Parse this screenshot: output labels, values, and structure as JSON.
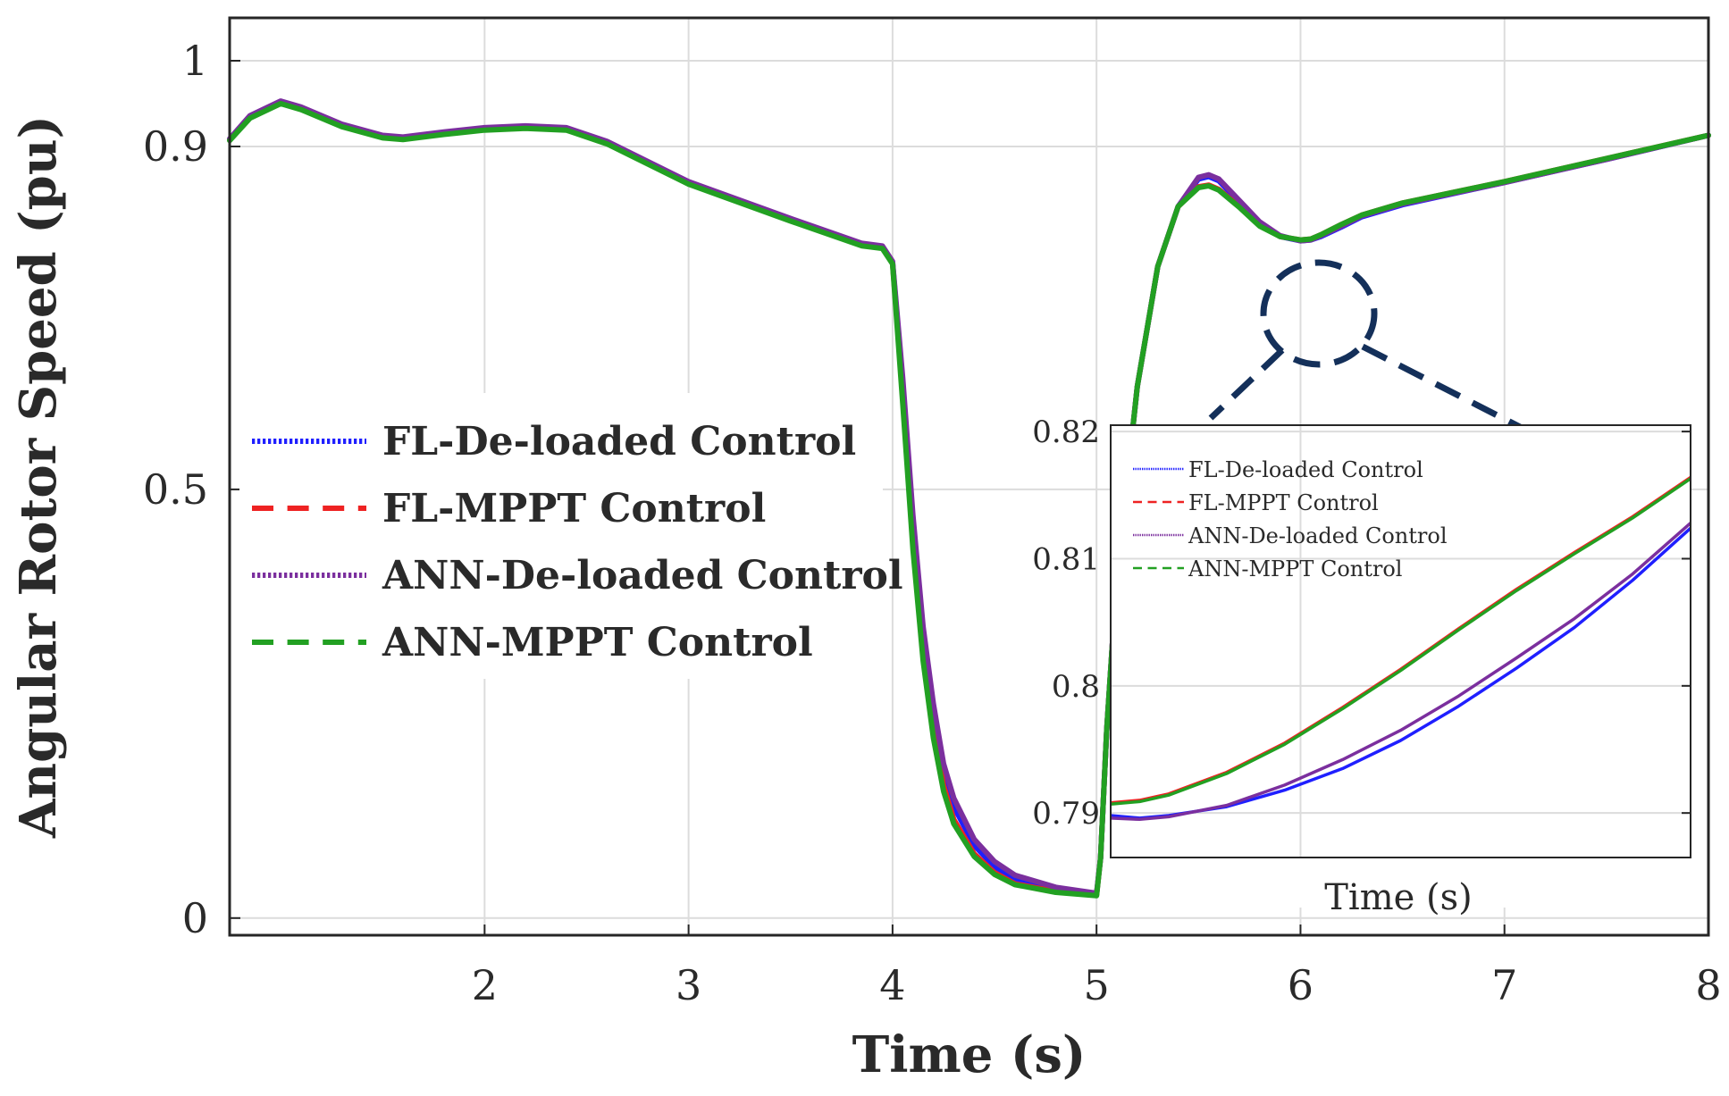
{
  "chart_data": [
    {
      "type": "line",
      "title": "",
      "xlabel": "Time (s)",
      "ylabel": "Angular Rotor Speed (pu)",
      "xlim": [
        0.75,
        8
      ],
      "ylim": [
        -0.02,
        1.05
      ],
      "grid": true,
      "legend_position": "center-left",
      "xticks": [
        2,
        3,
        4,
        5,
        6,
        7,
        8
      ],
      "xtick_labels": [
        "2",
        "3",
        "4",
        "5",
        "6",
        "7",
        "8"
      ],
      "yticks": [
        0,
        0.5,
        0.9,
        1
      ],
      "ytick_labels": [
        "0",
        "0.5",
        "0.9",
        "1"
      ],
      "series": [
        {
          "name": "FL-De-loaded Control",
          "color": "#1f1fff",
          "dash": "dotted",
          "x": [
            0.75,
            0.85,
            1.0,
            1.1,
            1.3,
            1.5,
            1.6,
            1.8,
            2.0,
            2.2,
            2.4,
            2.6,
            3.0,
            3.5,
            3.85,
            3.95,
            4.0,
            4.05,
            4.1,
            4.15,
            4.2,
            4.25,
            4.3,
            4.4,
            4.5,
            4.6,
            4.8,
            5.0,
            5.02,
            5.05,
            5.1,
            5.2,
            5.3,
            5.4,
            5.5,
            5.55,
            5.6,
            5.7,
            5.8,
            5.9,
            6.0,
            6.05,
            6.1,
            6.2,
            6.3,
            6.5,
            7.0,
            7.5,
            8.0
          ],
          "y": [
            0.908,
            0.935,
            0.952,
            0.945,
            0.925,
            0.912,
            0.91,
            0.916,
            0.921,
            0.923,
            0.921,
            0.905,
            0.858,
            0.815,
            0.786,
            0.783,
            0.765,
            0.62,
            0.46,
            0.33,
            0.24,
            0.17,
            0.13,
            0.085,
            0.06,
            0.045,
            0.033,
            0.028,
            0.07,
            0.22,
            0.4,
            0.62,
            0.76,
            0.83,
            0.862,
            0.865,
            0.86,
            0.835,
            0.81,
            0.795,
            0.79,
            0.791,
            0.795,
            0.806,
            0.818,
            0.832,
            0.858,
            0.885,
            0.913
          ]
        },
        {
          "name": "FL-MPPT Control",
          "color": "#ee2222",
          "dash": "dashed",
          "x": [
            0.75,
            0.85,
            1.0,
            1.1,
            1.3,
            1.5,
            1.6,
            1.8,
            2.0,
            2.2,
            2.4,
            2.6,
            3.0,
            3.5,
            3.85,
            3.95,
            4.0,
            4.05,
            4.1,
            4.15,
            4.2,
            4.25,
            4.3,
            4.4,
            4.5,
            4.6,
            4.8,
            5.0,
            5.02,
            5.05,
            5.1,
            5.2,
            5.3,
            5.4,
            5.5,
            5.55,
            5.6,
            5.7,
            5.8,
            5.9,
            6.0,
            6.05,
            6.1,
            6.2,
            6.3,
            6.5,
            7.0,
            7.5,
            8.0
          ],
          "y": [
            0.908,
            0.934,
            0.951,
            0.944,
            0.924,
            0.911,
            0.909,
            0.915,
            0.92,
            0.922,
            0.92,
            0.904,
            0.857,
            0.814,
            0.785,
            0.782,
            0.764,
            0.61,
            0.44,
            0.31,
            0.22,
            0.155,
            0.115,
            0.075,
            0.053,
            0.04,
            0.031,
            0.027,
            0.07,
            0.22,
            0.4,
            0.62,
            0.76,
            0.83,
            0.853,
            0.855,
            0.85,
            0.83,
            0.808,
            0.795,
            0.791,
            0.792,
            0.797,
            0.809,
            0.82,
            0.834,
            0.859,
            0.886,
            0.913
          ]
        },
        {
          "name": "ANN-De-loaded Control",
          "color": "#7b2f9e",
          "dash": "dotted",
          "x": [
            0.75,
            0.85,
            1.0,
            1.1,
            1.3,
            1.5,
            1.6,
            1.8,
            2.0,
            2.2,
            2.4,
            2.6,
            3.0,
            3.5,
            3.85,
            3.95,
            4.0,
            4.05,
            4.1,
            4.15,
            4.2,
            4.25,
            4.3,
            4.4,
            4.5,
            4.6,
            4.8,
            5.0,
            5.02,
            5.05,
            5.1,
            5.2,
            5.3,
            5.4,
            5.5,
            5.55,
            5.6,
            5.7,
            5.8,
            5.9,
            6.0,
            6.05,
            6.1,
            6.2,
            6.3,
            6.5,
            7.0,
            7.5,
            8.0
          ],
          "y": [
            0.909,
            0.936,
            0.953,
            0.946,
            0.926,
            0.913,
            0.911,
            0.917,
            0.922,
            0.924,
            0.922,
            0.906,
            0.859,
            0.816,
            0.787,
            0.784,
            0.766,
            0.63,
            0.47,
            0.34,
            0.25,
            0.18,
            0.14,
            0.092,
            0.066,
            0.05,
            0.036,
            0.029,
            0.07,
            0.22,
            0.4,
            0.62,
            0.76,
            0.83,
            0.864,
            0.867,
            0.862,
            0.837,
            0.812,
            0.796,
            0.79,
            0.791,
            0.796,
            0.807,
            0.819,
            0.833,
            0.858,
            0.885,
            0.913
          ]
        },
        {
          "name": "ANN-MPPT Control",
          "color": "#22a022",
          "dash": "dashed",
          "x": [
            0.75,
            0.85,
            1.0,
            1.1,
            1.3,
            1.5,
            1.6,
            1.8,
            2.0,
            2.2,
            2.4,
            2.6,
            3.0,
            3.5,
            3.85,
            3.95,
            4.0,
            4.05,
            4.1,
            4.15,
            4.2,
            4.25,
            4.3,
            4.4,
            4.5,
            4.6,
            4.8,
            5.0,
            5.02,
            5.05,
            5.1,
            5.2,
            5.3,
            5.4,
            5.5,
            5.55,
            5.6,
            5.7,
            5.8,
            5.9,
            6.0,
            6.05,
            6.1,
            6.2,
            6.3,
            6.5,
            7.0,
            7.5,
            8.0
          ],
          "y": [
            0.907,
            0.933,
            0.95,
            0.943,
            0.923,
            0.91,
            0.908,
            0.914,
            0.919,
            0.921,
            0.919,
            0.903,
            0.856,
            0.813,
            0.784,
            0.781,
            0.763,
            0.6,
            0.43,
            0.3,
            0.21,
            0.148,
            0.11,
            0.072,
            0.051,
            0.039,
            0.03,
            0.026,
            0.07,
            0.22,
            0.4,
            0.62,
            0.76,
            0.83,
            0.852,
            0.854,
            0.849,
            0.829,
            0.807,
            0.795,
            0.791,
            0.792,
            0.797,
            0.809,
            0.82,
            0.834,
            0.859,
            0.886,
            0.913
          ]
        }
      ]
    },
    {
      "type": "line",
      "title": "",
      "xlabel": "Time (s)",
      "ylabel": "",
      "xlim": [
        0,
        1
      ],
      "ylim": [
        0.7865,
        0.8205
      ],
      "grid": true,
      "legend_position": "top-left",
      "yticks": [
        0.79,
        0.8,
        0.81,
        0.82
      ],
      "ytick_labels": [
        "0.79",
        "0.8",
        "0.81",
        "0.82"
      ],
      "series": [
        {
          "name": "FL-De-loaded Control",
          "color": "#1f1fff",
          "dash": "dotted",
          "x": [
            0,
            0.05,
            0.1,
            0.2,
            0.3,
            0.4,
            0.5,
            0.6,
            0.7,
            0.8,
            0.9,
            1.0
          ],
          "y": [
            0.7898,
            0.7896,
            0.7898,
            0.7905,
            0.7918,
            0.7935,
            0.7957,
            0.7984,
            0.8014,
            0.8046,
            0.8083,
            0.8124
          ]
        },
        {
          "name": "FL-MPPT Control",
          "color": "#ee2222",
          "dash": "dashed",
          "x": [
            0,
            0.05,
            0.1,
            0.2,
            0.3,
            0.4,
            0.5,
            0.6,
            0.7,
            0.8,
            0.9,
            1.0
          ],
          "y": [
            0.7908,
            0.791,
            0.7915,
            0.7932,
            0.7955,
            0.7983,
            0.8013,
            0.8045,
            0.8076,
            0.8105,
            0.8133,
            0.8164
          ]
        },
        {
          "name": "ANN-De-loaded Control",
          "color": "#7b2f9e",
          "dash": "dotted",
          "x": [
            0,
            0.05,
            0.1,
            0.2,
            0.3,
            0.4,
            0.5,
            0.6,
            0.7,
            0.8,
            0.9,
            1.0
          ],
          "y": [
            0.7896,
            0.7895,
            0.7897,
            0.7906,
            0.7922,
            0.7942,
            0.7965,
            0.7992,
            0.8022,
            0.8053,
            0.8088,
            0.8128
          ]
        },
        {
          "name": "ANN-MPPT Control",
          "color": "#22a022",
          "dash": "dashed",
          "x": [
            0,
            0.05,
            0.1,
            0.2,
            0.3,
            0.4,
            0.5,
            0.6,
            0.7,
            0.8,
            0.9,
            1.0
          ],
          "y": [
            0.7907,
            0.7909,
            0.7914,
            0.7931,
            0.7954,
            0.7982,
            0.8012,
            0.8044,
            0.8075,
            0.8104,
            0.8132,
            0.8163
          ]
        }
      ]
    }
  ]
}
